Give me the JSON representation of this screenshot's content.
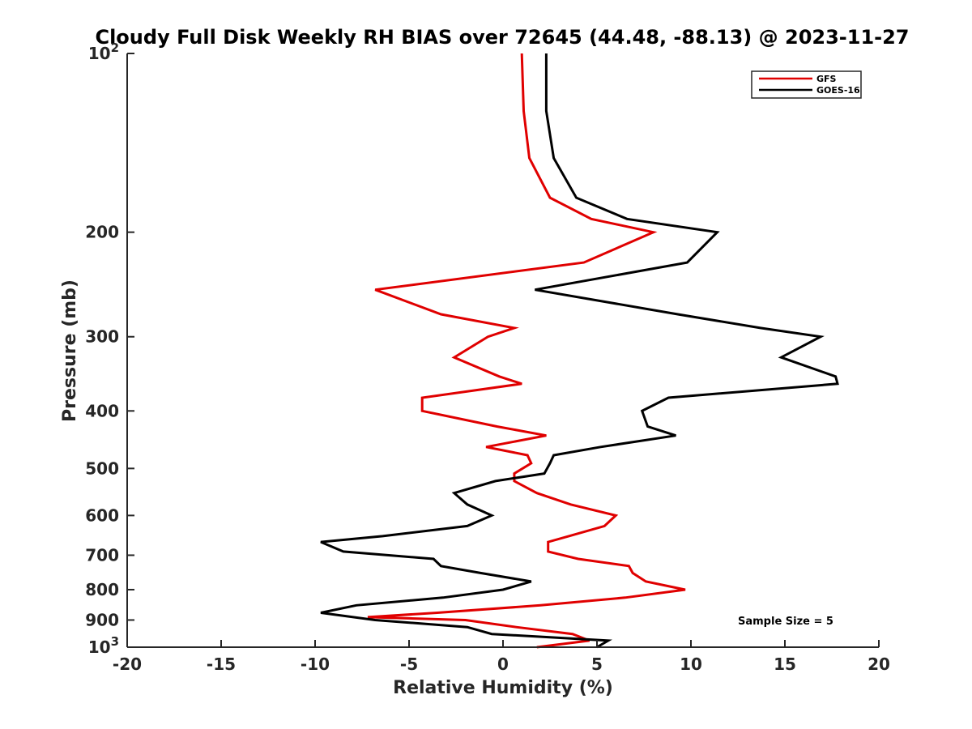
{
  "chart_data": {
    "type": "line",
    "title": "Cloudy Full Disk Weekly RH BIAS over 72645 (44.48, -88.13) @ 2023-11-27",
    "xlabel": "Relative Humidity (%)",
    "ylabel": "Pressure (mb)",
    "xlim": [
      -20,
      20
    ],
    "ylim": [
      100,
      1000
    ],
    "y_scale": "log",
    "y_reversed": true,
    "grid": false,
    "legend_position": "top-right",
    "x_ticks": [
      -20,
      -15,
      -10,
      -5,
      0,
      5,
      10,
      15,
      20
    ],
    "x_tick_labels": [
      "-20",
      "-15",
      "-10",
      "-5",
      "0",
      "5",
      "10",
      "15",
      "20"
    ],
    "y_ticks": [
      100,
      200,
      300,
      400,
      500,
      600,
      700,
      800,
      900,
      1000
    ],
    "y_tick_labels": [
      {
        "base": "10",
        "exp": "2"
      },
      {
        "base": "200",
        "exp": ""
      },
      {
        "base": "300",
        "exp": ""
      },
      {
        "base": "400",
        "exp": ""
      },
      {
        "base": "500",
        "exp": ""
      },
      {
        "base": "600",
        "exp": ""
      },
      {
        "base": "700",
        "exp": ""
      },
      {
        "base": "800",
        "exp": ""
      },
      {
        "base": "900",
        "exp": ""
      },
      {
        "base": "10",
        "exp": "3"
      }
    ],
    "annotation": "Sample Size = 5",
    "series": [
      {
        "name": "GFS",
        "color": "#e00000",
        "points": [
          [
            1.0,
            100
          ],
          [
            1.1,
            125
          ],
          [
            1.4,
            150
          ],
          [
            2.5,
            175
          ],
          [
            4.7,
            190
          ],
          [
            8.0,
            200
          ],
          [
            4.3,
            225
          ],
          [
            -6.8,
            250
          ],
          [
            -3.3,
            275
          ],
          [
            0.6,
            290
          ],
          [
            -0.8,
            300
          ],
          [
            -2.6,
            325
          ],
          [
            -0.2,
            350
          ],
          [
            1.0,
            360
          ],
          [
            -4.3,
            380
          ],
          [
            -4.3,
            400
          ],
          [
            -0.3,
            425
          ],
          [
            2.3,
            440
          ],
          [
            -0.9,
            460
          ],
          [
            1.3,
            475
          ],
          [
            1.5,
            490
          ],
          [
            0.6,
            510
          ],
          [
            0.6,
            525
          ],
          [
            1.8,
            550
          ],
          [
            3.6,
            575
          ],
          [
            6.0,
            600
          ],
          [
            5.4,
            625
          ],
          [
            3.5,
            650
          ],
          [
            2.4,
            665
          ],
          [
            2.4,
            690
          ],
          [
            4.0,
            710
          ],
          [
            6.7,
            730
          ],
          [
            6.9,
            750
          ],
          [
            7.6,
            775
          ],
          [
            9.7,
            800
          ],
          [
            6.5,
            825
          ],
          [
            2.0,
            850
          ],
          [
            -3.5,
            875
          ],
          [
            -7.2,
            890
          ],
          [
            -2.0,
            900
          ],
          [
            0.7,
            925
          ],
          [
            3.7,
            950
          ],
          [
            4.6,
            975
          ],
          [
            1.8,
            1000
          ]
        ]
      },
      {
        "name": "GOES-16",
        "color": "#000000",
        "points": [
          [
            2.3,
            100
          ],
          [
            2.3,
            125
          ],
          [
            2.7,
            150
          ],
          [
            3.9,
            175
          ],
          [
            6.6,
            190
          ],
          [
            11.4,
            200
          ],
          [
            9.8,
            225
          ],
          [
            1.7,
            250
          ],
          [
            9.3,
            275
          ],
          [
            13.7,
            290
          ],
          [
            16.9,
            300
          ],
          [
            14.8,
            325
          ],
          [
            17.7,
            350
          ],
          [
            17.8,
            360
          ],
          [
            8.8,
            380
          ],
          [
            7.4,
            400
          ],
          [
            7.7,
            425
          ],
          [
            9.2,
            440
          ],
          [
            5.2,
            460
          ],
          [
            2.7,
            475
          ],
          [
            2.5,
            490
          ],
          [
            2.2,
            510
          ],
          [
            -0.4,
            525
          ],
          [
            -2.6,
            550
          ],
          [
            -1.9,
            575
          ],
          [
            -0.6,
            600
          ],
          [
            -1.9,
            625
          ],
          [
            -6.4,
            650
          ],
          [
            -9.7,
            665
          ],
          [
            -8.5,
            690
          ],
          [
            -3.7,
            710
          ],
          [
            -3.3,
            730
          ],
          [
            -1.2,
            750
          ],
          [
            1.5,
            775
          ],
          [
            0.0,
            800
          ],
          [
            -3.2,
            825
          ],
          [
            -7.8,
            850
          ],
          [
            -9.7,
            875
          ],
          [
            -6.8,
            900
          ],
          [
            -1.9,
            925
          ],
          [
            -0.6,
            950
          ],
          [
            5.6,
            975
          ],
          [
            5.0,
            1000
          ]
        ]
      }
    ]
  }
}
